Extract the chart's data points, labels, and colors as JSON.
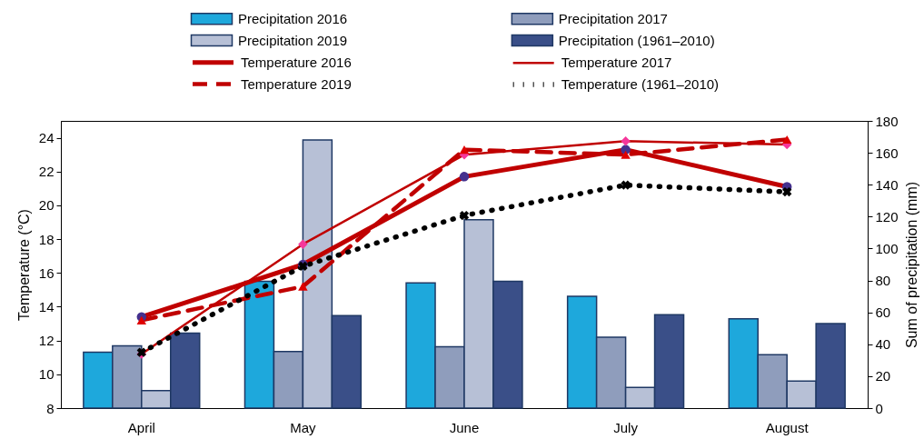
{
  "chart_data": {
    "type": "bar",
    "categories": [
      "April",
      "May",
      "June",
      "July",
      "August"
    ],
    "series": [
      {
        "name": "Precipitation 2016",
        "axis": "y2",
        "color": "#1ea8dc",
        "values": [
          35,
          79.5,
          78.5,
          70,
          56
        ]
      },
      {
        "name": "Precipitation 2017",
        "axis": "y2",
        "color": "#8f9dbc",
        "values": [
          39,
          35.5,
          38.5,
          44.5,
          33.5
        ]
      },
      {
        "name": "Precipitation 2019",
        "axis": "y2",
        "color": "#b7c0d6",
        "values": [
          11,
          168,
          118,
          13,
          17
        ]
      },
      {
        "name": "Precipitation (1961–2010)",
        "axis": "y2",
        "color": "#3a4f88",
        "values": [
          47,
          58,
          79.5,
          58.5,
          53
        ]
      },
      {
        "name": "Temperature 2016",
        "type": "line",
        "color": "#c00000",
        "line_style": "solid",
        "marker": "circle",
        "colors": [
          "#44308e",
          "#44308e",
          "#44308e",
          "#44308e",
          "#44308e"
        ],
        "values": [
          13.4,
          16.5,
          21.7,
          23.3,
          21.1
        ]
      },
      {
        "name": "Temperature 2017",
        "type": "line",
        "color": "#c00000",
        "line_style": "solid",
        "marker": "diamond",
        "colors": [
          "#f5379b",
          "#f5379b",
          "#f5379b",
          "#f5379b",
          "#f5379b"
        ],
        "values": [
          11.2,
          17.7,
          23.0,
          23.8,
          23.6
        ]
      },
      {
        "name": "Temperature 2019",
        "type": "line",
        "color": "#c00000",
        "line_style": "dashed",
        "marker": "triangle",
        "colors": [
          "#e00000",
          "#e00000",
          "#e00000",
          "#e00000",
          "#e00000"
        ],
        "values": [
          13.2,
          15.2,
          23.3,
          23.0,
          23.9
        ]
      },
      {
        "name": "Temperature (1961–2010)",
        "type": "line",
        "color": "#000000",
        "line_style": "dotted",
        "marker": "cross",
        "colors": [
          "#000000",
          "#000000",
          "#000000",
          "#000000",
          "#000000"
        ],
        "values": [
          11.3,
          16.4,
          19.4,
          21.2,
          20.8
        ]
      }
    ],
    "ylabel": "Temperature (°C)",
    "ylim": [
      8,
      25
    ],
    "yticks": [
      8,
      10,
      12,
      14,
      16,
      18,
      20,
      22,
      24
    ],
    "y2label": "Sum of precipitation (mm)",
    "y2lim": [
      0,
      180
    ],
    "y2ticks": [
      0,
      20,
      40,
      60,
      80,
      100,
      120,
      140,
      160,
      180
    ],
    "legend": "top"
  }
}
